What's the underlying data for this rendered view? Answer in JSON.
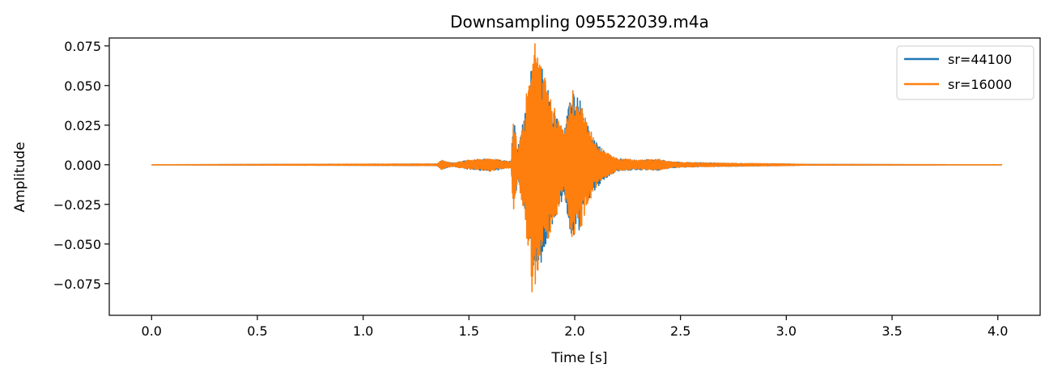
{
  "chart_data": {
    "type": "line",
    "title": "Downsampling 095522039.m4a",
    "xlabel": "Time [s]",
    "ylabel": "Amplitude",
    "xlim": [
      -0.2,
      4.2
    ],
    "ylim": [
      -0.095,
      0.08
    ],
    "x_ticks": [
      0.0,
      0.5,
      1.0,
      1.5,
      2.0,
      2.5,
      3.0,
      3.5,
      4.0
    ],
    "x_tick_labels": [
      "0.0",
      "0.5",
      "1.0",
      "1.5",
      "2.0",
      "2.5",
      "3.0",
      "3.5",
      "4.0"
    ],
    "y_ticks": [
      -0.075,
      -0.05,
      -0.025,
      0.0,
      0.025,
      0.05,
      0.075
    ],
    "y_tick_labels": [
      "−0.075",
      "−0.050",
      "−0.025",
      "0.000",
      "0.025",
      "0.050",
      "0.075"
    ],
    "grid": false,
    "legend_position": "top-right",
    "series": [
      {
        "name": "sr=44100",
        "color": "#1f77b4",
        "envelope": [
          [
            0.0,
            0.0
          ],
          [
            1.35,
            0.0005
          ],
          [
            1.37,
            0.003
          ],
          [
            1.42,
            0.001
          ],
          [
            1.5,
            0.003
          ],
          [
            1.6,
            0.004
          ],
          [
            1.7,
            0.002
          ],
          [
            1.71,
            0.032
          ],
          [
            1.73,
            0.01
          ],
          [
            1.76,
            0.03
          ],
          [
            1.78,
            0.05
          ],
          [
            1.8,
            0.072
          ],
          [
            1.82,
            0.065
          ],
          [
            1.85,
            0.06
          ],
          [
            1.88,
            0.045
          ],
          [
            1.92,
            0.03
          ],
          [
            1.95,
            0.02
          ],
          [
            1.98,
            0.05
          ],
          [
            2.0,
            0.045
          ],
          [
            2.03,
            0.04
          ],
          [
            2.05,
            0.03
          ],
          [
            2.08,
            0.02
          ],
          [
            2.1,
            0.015
          ],
          [
            2.15,
            0.008
          ],
          [
            2.2,
            0.004
          ],
          [
            2.3,
            0.003
          ],
          [
            2.4,
            0.0035
          ],
          [
            2.45,
            0.002
          ],
          [
            2.5,
            0.0015
          ],
          [
            2.7,
            0.001
          ],
          [
            3.0,
            0.0005
          ],
          [
            3.1,
            0.0002
          ],
          [
            4.0,
            0.0
          ],
          [
            4.02,
            0.0
          ]
        ]
      },
      {
        "name": "sr=16000",
        "color": "#ff7f0e",
        "envelope": [
          [
            0.0,
            0.0
          ],
          [
            1.35,
            0.0005
          ],
          [
            1.37,
            0.003
          ],
          [
            1.42,
            0.001
          ],
          [
            1.5,
            0.003
          ],
          [
            1.6,
            0.004
          ],
          [
            1.7,
            0.002
          ],
          [
            1.71,
            0.032
          ],
          [
            1.73,
            0.01
          ],
          [
            1.76,
            0.03
          ],
          [
            1.78,
            0.055
          ],
          [
            1.8,
            0.087
          ],
          [
            1.82,
            0.07
          ],
          [
            1.85,
            0.06
          ],
          [
            1.88,
            0.045
          ],
          [
            1.92,
            0.03
          ],
          [
            1.95,
            0.02
          ],
          [
            1.98,
            0.05
          ],
          [
            2.0,
            0.047
          ],
          [
            2.03,
            0.04
          ],
          [
            2.05,
            0.03
          ],
          [
            2.08,
            0.02
          ],
          [
            2.1,
            0.015
          ],
          [
            2.15,
            0.008
          ],
          [
            2.2,
            0.004
          ],
          [
            2.3,
            0.003
          ],
          [
            2.4,
            0.0035
          ],
          [
            2.45,
            0.002
          ],
          [
            2.5,
            0.0015
          ],
          [
            2.7,
            0.001
          ],
          [
            3.0,
            0.0005
          ],
          [
            3.1,
            0.0002
          ],
          [
            4.0,
            0.0
          ],
          [
            4.02,
            0.0
          ]
        ]
      }
    ]
  }
}
